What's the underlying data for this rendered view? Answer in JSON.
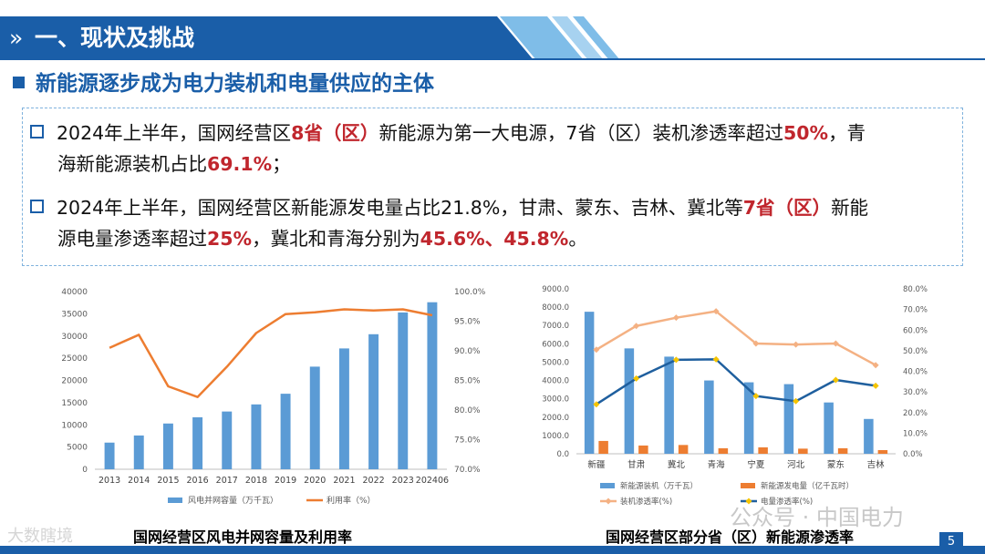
{
  "header": {
    "chevron": "»",
    "title": "一、现状及挑战"
  },
  "subtitle": "新能源逐步成为电力装机和电量供应的主体",
  "bullets": [
    {
      "line1": [
        {
          "t": "2024年上半年，国网经营区",
          "hl": false
        },
        {
          "t": "8省（区）",
          "hl": true
        },
        {
          "t": "新能源为第一大电源，7省（区）装机渗透率超过",
          "hl": false
        },
        {
          "t": "50%",
          "hl": true
        },
        {
          "t": "，青",
          "hl": false
        }
      ],
      "line2": [
        {
          "t": "海新能源装机占比",
          "hl": false
        },
        {
          "t": "69.1%",
          "hl": true
        },
        {
          "t": "；",
          "hl": false
        }
      ]
    },
    {
      "line1": [
        {
          "t": "2024年上半年，国网经营区新能源发电量占比21.8%，甘肃、蒙东、吉林、冀北等",
          "hl": false
        },
        {
          "t": "7省（区）",
          "hl": true
        },
        {
          "t": "新能",
          "hl": false
        }
      ],
      "line2": [
        {
          "t": "源电量渗透率超过",
          "hl": false
        },
        {
          "t": "25%",
          "hl": true
        },
        {
          "t": "，冀北和青海分别为",
          "hl": false
        },
        {
          "t": "45.6%、45.8%",
          "hl": true
        },
        {
          "t": "。",
          "hl": false
        }
      ]
    }
  ],
  "colors": {
    "blue": "#5b9bd5",
    "orange": "#ed7d31",
    "navy": "#1f5f9e",
    "gold": "#f5c400",
    "lightorange": "#f4b183",
    "brand": "#1a5ea8",
    "highlight": "#c0262d"
  },
  "chart_data": [
    {
      "type": "bar",
      "caption": "国网经营区风电并网容量及利用率",
      "categories": [
        "2013",
        "2014",
        "2015",
        "2016",
        "2017",
        "2018",
        "2019",
        "2020",
        "2021",
        "2022",
        "2023",
        "202406"
      ],
      "series": [
        {
          "name": "风电并网容量（万千瓦）",
          "type": "bar",
          "axis": "left",
          "values": [
            6000,
            7600,
            10300,
            11700,
            13000,
            14600,
            17000,
            23100,
            27200,
            30400,
            35300,
            37600
          ]
        },
        {
          "name": "利用率（%）",
          "type": "line",
          "axis": "right",
          "values": [
            90.5,
            92.7,
            84.0,
            82.2,
            87.3,
            93.0,
            96.2,
            96.5,
            97.0,
            96.8,
            97.0,
            96.0
          ]
        }
      ],
      "y_left": {
        "min": 0,
        "max": 40000,
        "step": 5000,
        "ticks": [
          "0",
          "5000",
          "10000",
          "15000",
          "20000",
          "25000",
          "30000",
          "35000",
          "40000"
        ]
      },
      "y_right": {
        "min": 70,
        "max": 100,
        "step": 5,
        "ticks": [
          "70.0%",
          "75.0%",
          "80.0%",
          "85.0%",
          "90.0%",
          "95.0%",
          "100.0%"
        ]
      },
      "grid": false,
      "legend": "bottom"
    },
    {
      "type": "bar",
      "caption": "国网经营区部分省（区）新能源渗透率",
      "categories": [
        "新疆",
        "甘肃",
        "冀北",
        "青海",
        "宁夏",
        "河北",
        "蒙东",
        "吉林"
      ],
      "series": [
        {
          "name": "新能源装机（万千瓦）",
          "type": "bar",
          "axis": "left",
          "values": [
            7750,
            5750,
            5300,
            4000,
            3900,
            3800,
            2800,
            1900
          ]
        },
        {
          "name": "新能源发电量（亿千瓦时）",
          "type": "bar",
          "axis": "left",
          "values": [
            700,
            450,
            480,
            300,
            350,
            280,
            300,
            200
          ]
        },
        {
          "name": "装机渗透率(%)",
          "type": "line",
          "axis": "right",
          "values": [
            50.5,
            62.0,
            66.0,
            69.1,
            53.5,
            53.0,
            53.5,
            43.0
          ]
        },
        {
          "name": "电量渗透率(%)",
          "type": "line",
          "axis": "right",
          "values": [
            24.0,
            36.5,
            45.6,
            45.8,
            28.0,
            25.5,
            35.8,
            33.0
          ]
        }
      ],
      "y_left": {
        "min": 0,
        "max": 9000,
        "step": 1000,
        "ticks": [
          "0.0",
          "1000.0",
          "2000.0",
          "3000.0",
          "4000.0",
          "5000.0",
          "6000.0",
          "7000.0",
          "8000.0",
          "9000.0"
        ]
      },
      "y_right": {
        "min": 0,
        "max": 80,
        "step": 10,
        "ticks": [
          "0.0%",
          "10.0%",
          "20.0%",
          "30.0%",
          "40.0%",
          "50.0%",
          "60.0%",
          "70.0%",
          "80.0%"
        ]
      },
      "grid": false,
      "legend": "bottom"
    }
  ],
  "watermark_left": "大数瞎境",
  "watermark_right": "公众号 · 中国电力",
  "page_number": "5"
}
